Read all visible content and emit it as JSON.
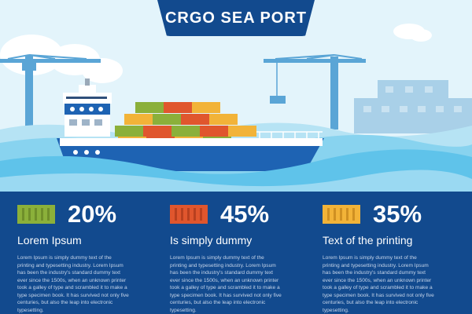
{
  "header": {
    "title": "CRGO SEA PORT"
  },
  "colors": {
    "panel": "#124a8e",
    "sky": "#e3f4fb",
    "sea": "#7fd0ee",
    "hull": "#1e63b3",
    "container_green": "#8bb03a",
    "container_red": "#e0562d",
    "container_orange": "#f2b338"
  },
  "stats": [
    {
      "icon": "green-container-icon",
      "percent": "20%",
      "title": "Lorem Ipsum",
      "body": "Lorem Ipsum is simply dummy text of the printing and typesetting industry. Lorem Ipsum has been the industry's standard dummy text ever since the 1500s, when an unknown printer took a galley of type and scrambled it to make a type specimen book. It has survived not only five centuries, but also the leap into electronic typesetting."
    },
    {
      "icon": "red-container-icon",
      "percent": "45%",
      "title": "Is simply dummy",
      "body": "Lorem Ipsum is simply dummy text of the printing and typesetting industry. Lorem Ipsum has been the industry's standard dummy text ever since the 1500s, when an unknown printer took a galley of type and scrambled it to make a type specimen book. It has survived not only five centuries, but also the leap into electronic typesetting."
    },
    {
      "icon": "orange-container-icon",
      "percent": "35%",
      "title": "Text of the printing",
      "body": "Lorem Ipsum is simply dummy text of the printing and typesetting industry. Lorem Ipsum has been the industry's standard dummy text ever since the 1500s, when an unknown printer took a galley of type and scrambled it to make a type specimen book. It has survived not only five centuries, but also the leap into electronic typesetting."
    }
  ]
}
